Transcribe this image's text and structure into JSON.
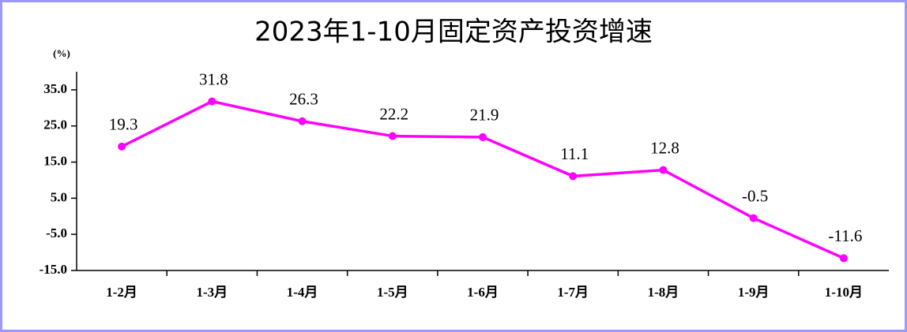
{
  "chart_data": {
    "type": "line",
    "title": "2023年1-10月固定资产投资增速",
    "y_unit": "(%)",
    "categories": [
      "1-2月",
      "1-3月",
      "1-4月",
      "1-5月",
      "1-6月",
      "1-7月",
      "1-8月",
      "1-9月",
      "1-10月"
    ],
    "series": [
      {
        "name": "固定资产投资增速",
        "color": "#ff00ff",
        "values": [
          19.3,
          31.8,
          26.3,
          22.2,
          21.9,
          11.1,
          12.8,
          -0.5,
          -11.6
        ]
      }
    ],
    "ylim": [
      -15,
      40
    ],
    "yticks": [
      {
        "value": 35,
        "label": "35.0"
      },
      {
        "value": 25,
        "label": "25.0"
      },
      {
        "value": 15,
        "label": "15.0"
      },
      {
        "value": 5,
        "label": "5.0"
      },
      {
        "value": -5,
        "label": "-5.0"
      },
      {
        "value": -15,
        "label": "-15.0"
      }
    ],
    "grid": false
  }
}
